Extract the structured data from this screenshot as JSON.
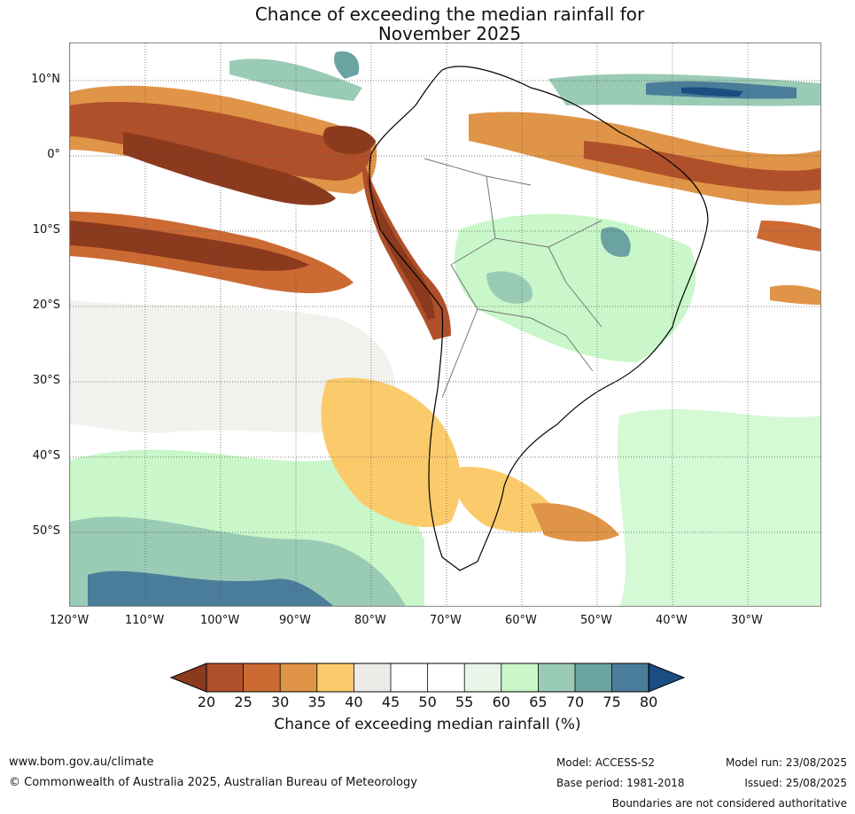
{
  "title": {
    "line1": "Chance of exceeding the median rainfall for",
    "line2": "November 2025"
  },
  "map": {
    "region": "South America",
    "lat_labels": [
      "10°N",
      "0°",
      "10°S",
      "20°S",
      "30°S",
      "40°S",
      "50°S"
    ],
    "lon_labels": [
      "120°W",
      "110°W",
      "100°W",
      "90°W",
      "80°W",
      "70°W",
      "60°W",
      "50°W",
      "40°W",
      "30°W"
    ]
  },
  "colorbar": {
    "ticks": [
      "20",
      "25",
      "30",
      "35",
      "40",
      "45",
      "50",
      "55",
      "60",
      "65",
      "70",
      "75",
      "80"
    ],
    "label": "Chance of exceeding median rainfall (%)",
    "colors": [
      "#8b3a1e",
      "#b0502a",
      "#cc6a33",
      "#e09447",
      "#fbcb6b",
      "#ecebe7",
      "#ffffff",
      "#ffffff",
      "#eaf5ea",
      "#c9f7c9",
      "#9acbb5",
      "#6ba3a3",
      "#4a7d99",
      "#1a4d80"
    ]
  },
  "footer": {
    "website": "www.bom.gov.au/climate",
    "copyright": "© Commonwealth of Australia 2025, Australian Bureau of Meteorology",
    "model": "Model: ACCESS-S2",
    "base_period": "Base period: 1981-2018",
    "model_run": "Model run: 23/08/2025",
    "issued": "Issued: 25/08/2025",
    "disclaimer": "Boundaries are not considered authoritative"
  }
}
